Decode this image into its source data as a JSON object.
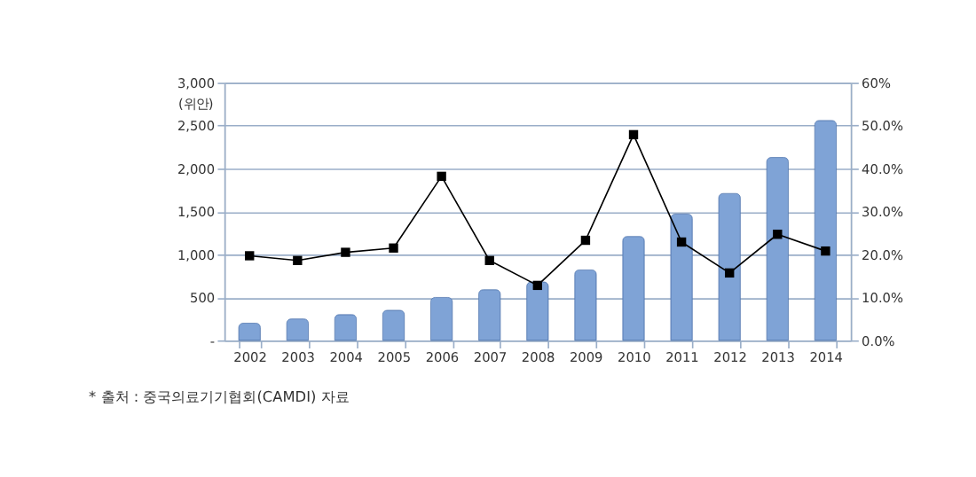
{
  "chart_data": {
    "type": "bar",
    "categories": [
      "2002",
      "2003",
      "2004",
      "2005",
      "2006",
      "2007",
      "2008",
      "2009",
      "2010",
      "2011",
      "2012",
      "2013",
      "2014"
    ],
    "ylabel": "(위안)",
    "series": [
      {
        "color": "#7fa3d6",
        "values": [
          200,
          250,
          300,
          350,
          500,
          590,
          680,
          820,
          1210,
          1470,
          1710,
          2130,
          2560
        ]
      },
      {
        "type": "line",
        "axis": "y2",
        "color": "#000000",
        "marker": "square",
        "line_style": "solid",
        "values": [
          19.7,
          18.6,
          20.5,
          21.5,
          38.2,
          18.6,
          12.8,
          23.3,
          47.9,
          22.9,
          15.7,
          24.7,
          20.8
        ]
      }
    ],
    "ylim": [
      0,
      3000
    ],
    "yticks": [
      {
        "value": 0,
        "label": "-"
      },
      {
        "value": 500,
        "label": "500"
      },
      {
        "value": 1000,
        "label": "1,000"
      },
      {
        "value": 1500,
        "label": "1,500"
      },
      {
        "value": 2000,
        "label": "2,000"
      },
      {
        "value": 2500,
        "label": "2,500"
      },
      {
        "value": 3000,
        "label": "3,000"
      }
    ],
    "y2lim": [
      0,
      60
    ],
    "y2ticks": [
      {
        "value": 0,
        "label": "0.0%"
      },
      {
        "value": 10,
        "label": "10.0%"
      },
      {
        "value": 20,
        "label": "20.0%"
      },
      {
        "value": 30,
        "label": "30.0%"
      },
      {
        "value": 40,
        "label": "40.0%"
      },
      {
        "value": 50,
        "label": "50.0%"
      },
      {
        "value": 60,
        "label": "60%"
      }
    ],
    "grid": "y",
    "annotations": [
      "* 출처 : 중국의료기기협회(CAMDI) 자료"
    ]
  }
}
